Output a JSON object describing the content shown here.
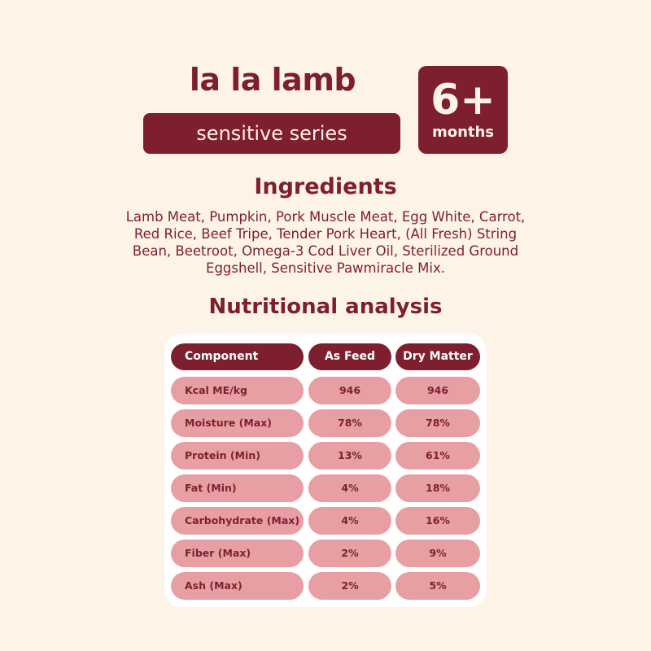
{
  "product": {
    "name": "la la lamb",
    "series": "sensitive series",
    "age_value": "6+",
    "age_unit": "months"
  },
  "ingredients": {
    "title": "Ingredients",
    "text": "Lamb Meat, Pumpkin, Pork Muscle Meat, Egg White, Carrot, Red Rice, Beef Tripe, Tender Pork Heart, (All Fresh) String Bean, Beetroot, Omega-3 Cod Liver Oil, Sterilized Ground Eggshell, Sensitive Pawmiracle Mix."
  },
  "nutrition": {
    "title": "Nutritional analysis",
    "headers": [
      "Component",
      "As Feed",
      "Dry Matter"
    ],
    "rows": [
      {
        "component": "Kcal ME/kg",
        "as_feed": "946",
        "dry_matter": "946"
      },
      {
        "component": "Moisture (Max)",
        "as_feed": "78%",
        "dry_matter": "78%"
      },
      {
        "component": "Protein (Min)",
        "as_feed": "13%",
        "dry_matter": "61%"
      },
      {
        "component": "Fat (Min)",
        "as_feed": "4%",
        "dry_matter": "18%"
      },
      {
        "component": "Carbohydrate (Max)",
        "as_feed": "4%",
        "dry_matter": "16%"
      },
      {
        "component": "Fiber (Max)",
        "as_feed": "2%",
        "dry_matter": "9%"
      },
      {
        "component": "Ash (Max)",
        "as_feed": "2%",
        "dry_matter": "5%"
      }
    ]
  },
  "colors": {
    "brand": "#7d1f2e",
    "background": "#fdf3e7",
    "row_fill": "#e79fa4"
  }
}
